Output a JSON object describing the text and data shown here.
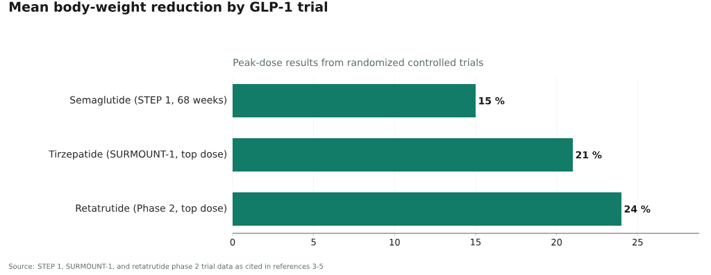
{
  "chart_data": {
    "type": "bar",
    "orientation": "horizontal",
    "title": "Mean body-weight reduction by GLP-1 trial",
    "subtitle": "Peak-dose results from randomized controlled trials",
    "categories": [
      "Semaglutide (STEP 1, 68 weeks)",
      "Tirzepatide (SURMOUNT-1, top dose)",
      "Retatrutide (Phase 2, top dose)"
    ],
    "values": [
      15,
      21,
      24
    ],
    "value_labels": [
      "15 %",
      "21 %",
      "24 %"
    ],
    "color": "#127c68",
    "xlim": [
      0,
      28.8
    ],
    "xticks": [
      0,
      5,
      10,
      15,
      20,
      25
    ],
    "grid": "x",
    "annotations": [
      "Source: STEP 1, SURMOUNT-1, and retatrutide phase 2 trial data as cited in references 3-5"
    ]
  }
}
